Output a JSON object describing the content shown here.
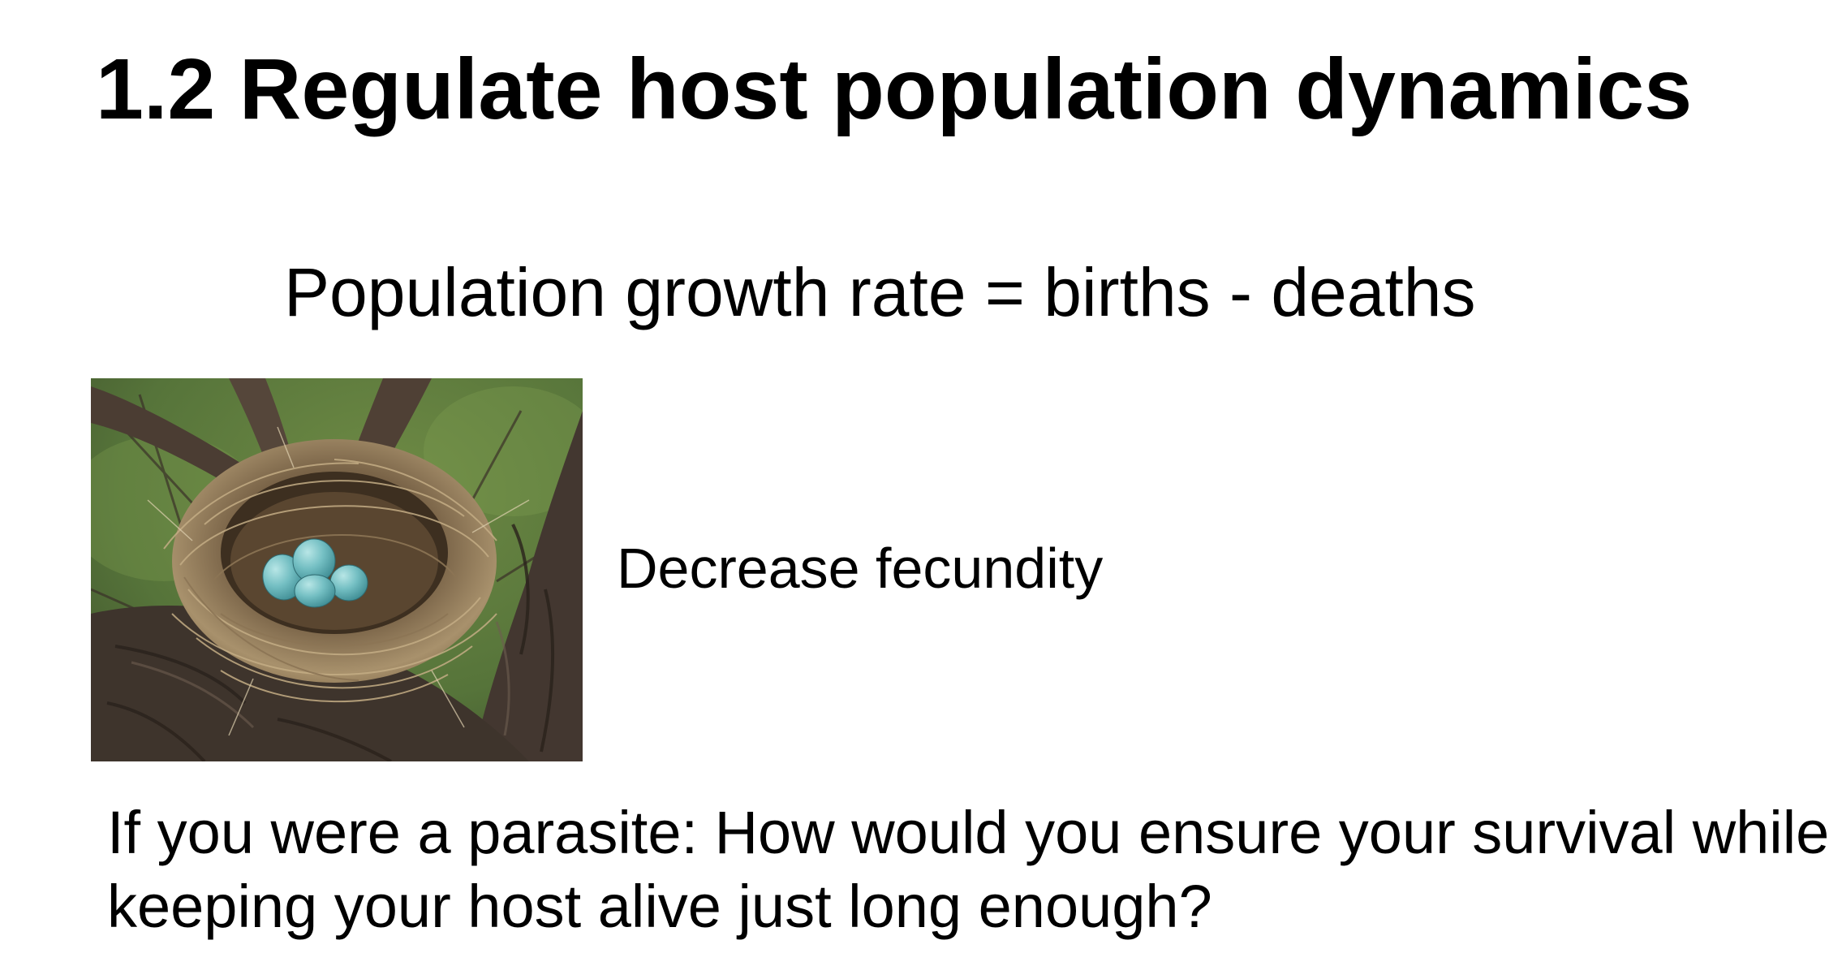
{
  "slide": {
    "title": "1.2 Regulate host population dynamics",
    "equation": "Population growth rate = births - deaths",
    "caption": "Decrease fecundity",
    "question_lines": [
      "If you were a parasite: How would you ensure your survival while",
      "keeping your host alive just long enough?"
    ]
  },
  "photo": {
    "subject": "bird nest with blue eggs",
    "egg_count": 4,
    "colors": {
      "background_green": "#5d7a3a",
      "bark": "#4a3b30",
      "nest_straw": "#a08a68",
      "egg_blue": "#6fb8bd"
    }
  }
}
